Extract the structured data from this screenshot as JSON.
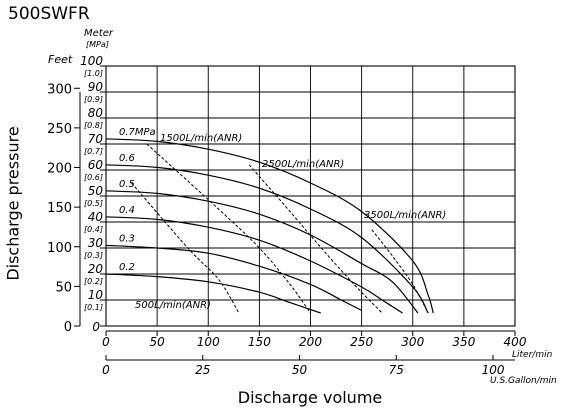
{
  "model": "500SWFR",
  "colors": {
    "ink": "#000000",
    "background": "#ffffff"
  },
  "chart_data": {
    "type": "line",
    "title": "500SWFR",
    "xlabel": "Discharge volume",
    "ylabel": "Discharge pressure",
    "grid": true,
    "xlim": [
      0,
      400
    ],
    "ylim": [
      0,
      100
    ],
    "x_axis_primary": {
      "unit": "Liter/min",
      "ticks": [
        "0",
        "50",
        "100",
        "150",
        "200",
        "250",
        "300",
        "350",
        "400"
      ]
    },
    "x_axis_secondary": {
      "unit": "U.S.Gallon/min",
      "ticks": [
        "0",
        "25",
        "50",
        "75",
        "100"
      ]
    },
    "y_axis_meter": {
      "header": "Meter",
      "ticks": [
        "0",
        "10",
        "20",
        "30",
        "40",
        "50",
        "60",
        "70",
        "80",
        "90",
        "100"
      ]
    },
    "y_axis_mpa": {
      "header": "[MPa]",
      "ticks": [
        "[0.1]",
        "[0.2]",
        "[0.3]",
        "[0.4]",
        "[0.5]",
        "[0.6]",
        "[0.7]",
        "[0.8]",
        "[0.9]",
        "[1.0]"
      ]
    },
    "y_axis_feet": {
      "header": "Feet",
      "ticks": [
        "0",
        "50",
        "100",
        "150",
        "200",
        "250",
        "300"
      ]
    },
    "series": [
      {
        "name": "0.7MPa",
        "x": [
          0,
          50,
          100,
          150,
          200,
          250,
          300,
          315,
          320
        ],
        "y": [
          72,
          71,
          68,
          63,
          55,
          44,
          25,
          12,
          5
        ]
      },
      {
        "name": "0.6",
        "x": [
          0,
          50,
          100,
          150,
          200,
          250,
          300,
          315
        ],
        "y": [
          62,
          61,
          58,
          53,
          45,
          34,
          15,
          5
        ]
      },
      {
        "name": "0.5",
        "x": [
          0,
          50,
          100,
          150,
          200,
          250,
          280,
          305
        ],
        "y": [
          52,
          51,
          48,
          43,
          35,
          24,
          17,
          5
        ]
      },
      {
        "name": "0.4",
        "x": [
          0,
          50,
          100,
          150,
          200,
          250,
          270,
          290
        ],
        "y": [
          42,
          41,
          38,
          33,
          25,
          15,
          10,
          5
        ]
      },
      {
        "name": "0.3",
        "x": [
          0,
          50,
          100,
          150,
          200,
          230,
          250
        ],
        "y": [
          31,
          30,
          28,
          23,
          16,
          10,
          6
        ]
      },
      {
        "name": "0.2",
        "x": [
          0,
          50,
          100,
          150,
          180,
          210
        ],
        "y": [
          20,
          19,
          17,
          13,
          9,
          5
        ]
      }
    ],
    "air_consumption_lines": [
      {
        "name": "500L/min(ANR)",
        "x": [
          25,
          80,
          110,
          130
        ],
        "y": [
          55,
          30,
          18,
          5
        ]
      },
      {
        "name": "1500L/min(ANR)",
        "x": [
          40,
          110,
          150,
          180,
          200
        ],
        "y": [
          70,
          45,
          30,
          16,
          5
        ]
      },
      {
        "name": "2500L/min(ANR)",
        "x": [
          140,
          180,
          215,
          245,
          270
        ],
        "y": [
          62,
          44,
          28,
          15,
          5
        ]
      },
      {
        "name": "3500L/min(ANR)",
        "x": [
          260,
          280,
          300,
          315
        ],
        "y": [
          37,
          27,
          16,
          5
        ]
      }
    ]
  }
}
